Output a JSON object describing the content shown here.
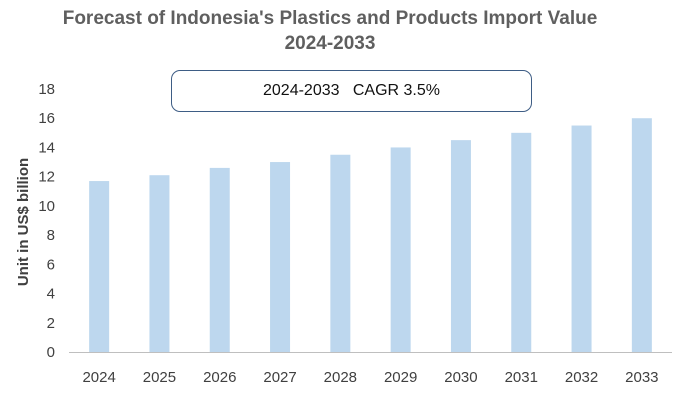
{
  "chart_data": {
    "type": "bar",
    "title_line1": "Forecast of Indonesia's Plastics and Products Import Value",
    "title_line2": "2024-2033",
    "annotation": "2024-2033   CAGR 3.5%",
    "xlabel": "",
    "ylabel": "Unit in US$ billion",
    "categories": [
      "2024",
      "2025",
      "2026",
      "2027",
      "2028",
      "2029",
      "2030",
      "2031",
      "2032",
      "2033"
    ],
    "values": [
      11.7,
      12.1,
      12.6,
      13.0,
      13.5,
      14.0,
      14.5,
      15.0,
      15.5,
      16.0
    ],
    "ylim": [
      0,
      18
    ],
    "yticks": [
      0,
      2,
      4,
      6,
      8,
      10,
      12,
      14,
      16,
      18
    ],
    "grid": false,
    "legend": "none",
    "bar_color": "#bdd7ee",
    "axis_color": "#bfbfbf"
  }
}
